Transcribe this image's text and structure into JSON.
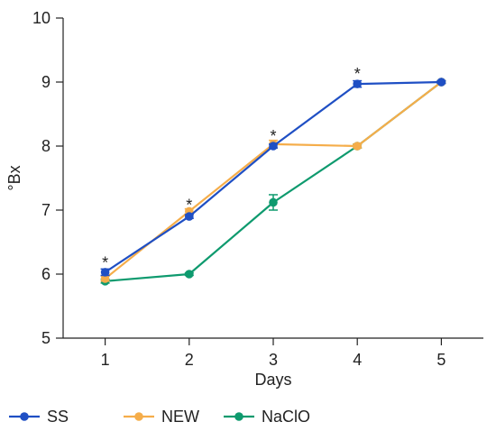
{
  "chart_data": {
    "type": "line",
    "xlabel": "Days",
    "ylabel": "°Bx",
    "x": [
      1,
      2,
      3,
      4,
      5
    ],
    "xlim": [
      0.5,
      5.5
    ],
    "ylim": [
      5,
      10
    ],
    "xticks": [
      "1",
      "2",
      "3",
      "4",
      "5"
    ],
    "yticks": [
      "5",
      "6",
      "7",
      "8",
      "9",
      "10"
    ],
    "grid": false,
    "legend_position": "bottom",
    "series": [
      {
        "name": "SS",
        "color": "#1f4fc4",
        "values": [
          6.03,
          6.9,
          8.0,
          8.97,
          9.0
        ],
        "errors": [
          0.05,
          0.03,
          0.03,
          0.05,
          0.02
        ]
      },
      {
        "name": "NEW",
        "color": "#f5ad4a",
        "values": [
          5.93,
          6.98,
          8.03,
          8.0,
          9.0
        ],
        "errors": [
          0.04,
          0.04,
          0.06,
          0.03,
          0.02
        ]
      },
      {
        "name": "NaClO",
        "color": "#0e9a6e",
        "values": [
          5.89,
          6.0,
          7.12,
          8.0,
          9.0
        ],
        "errors": [
          0.03,
          0.02,
          0.12,
          0.03,
          0.02
        ]
      }
    ],
    "annotations": [
      {
        "x": 1,
        "y": 6.15,
        "text": "*"
      },
      {
        "x": 2,
        "y": 7.05,
        "text": "*"
      },
      {
        "x": 3,
        "y": 8.13,
        "text": "*"
      },
      {
        "x": 4,
        "y": 9.1,
        "text": "*"
      }
    ]
  }
}
